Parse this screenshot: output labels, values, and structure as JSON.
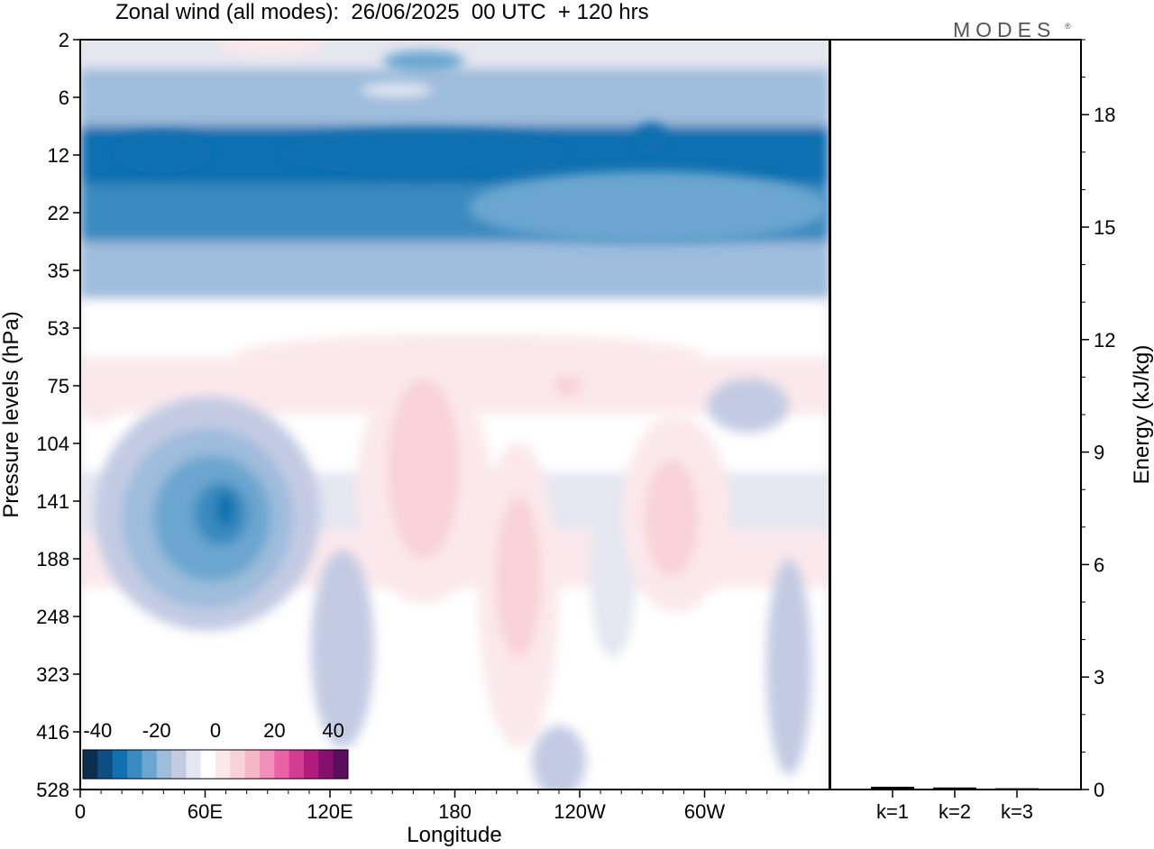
{
  "chart_data": [
    {
      "type": "heatmap",
      "title": "Zonal wind (all modes):  26/06/2025  00 UTC  + 120 hrs",
      "xlabel": "Longitude",
      "ylabel": "Pressure levels (hPa)",
      "x_ticks": [
        "0",
        "60E",
        "120E",
        "180",
        "120W",
        "60W"
      ],
      "y_ticks": [
        "2",
        "6",
        "12",
        "22",
        "35",
        "53",
        "75",
        "104",
        "141",
        "188",
        "248",
        "323",
        "416",
        "528"
      ],
      "y_scale": "log, reversed",
      "colorbar": {
        "ticks": [
          "-40",
          "-20",
          "0",
          "20",
          "40"
        ],
        "range": [
          -45,
          45
        ],
        "step": 5,
        "colors": [
          "#0d2f4f",
          "#0f4e85",
          "#1170b0",
          "#3a8ac0",
          "#6aa6cf",
          "#9ebcdc",
          "#c3cbe3",
          "#e4e6f0",
          "#ffffff",
          "#fbe8ec",
          "#f8d2d6",
          "#f6b6c6",
          "#f08fba",
          "#e962a6",
          "#d33a91",
          "#b01b7d",
          "#86106e",
          "#5c0e5e"
        ]
      },
      "zonal_mean_profile": {
        "levels_hPa": [
          2,
          6,
          12,
          22,
          35,
          53,
          75,
          104,
          141,
          188,
          248,
          323,
          416,
          528
        ],
        "values": [
          -10,
          -20,
          -35,
          -28,
          -18,
          -5,
          2,
          -5,
          -10,
          0,
          -3,
          -4,
          -4,
          -2
        ]
      }
    },
    {
      "type": "bar",
      "categories": [
        "k=1",
        "k=2",
        "k=3"
      ],
      "values": [
        0.05,
        0.03,
        0.01
      ],
      "ylabel": "Energy (kJ/kg)",
      "y_ticks": [
        "0",
        "3",
        "6",
        "9",
        "12",
        "15",
        "18"
      ],
      "ylim": [
        0,
        20
      ]
    }
  ],
  "brand": {
    "name": "MODES",
    "mark": "®"
  }
}
